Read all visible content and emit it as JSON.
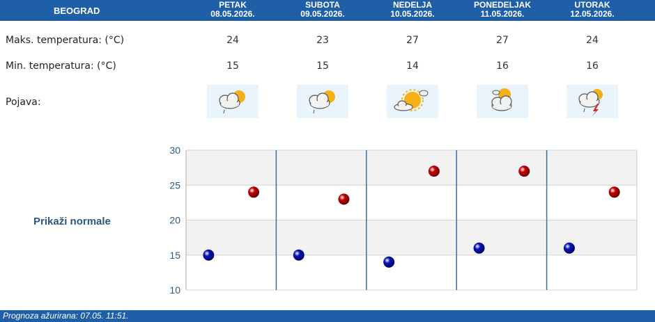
{
  "header": {
    "city": "BEOGRAD",
    "days": [
      {
        "name": "PETAK",
        "date": "08.05.2026."
      },
      {
        "name": "SUBOTA",
        "date": "09.05.2026."
      },
      {
        "name": "NEDELJA",
        "date": "10.05.2026."
      },
      {
        "name": "PONEDELJAK",
        "date": "11.05.2026."
      },
      {
        "name": "UTORAK",
        "date": "12.05.2026."
      }
    ]
  },
  "rows": {
    "max_label": "Maks. temperatura: (°C)",
    "min_label": "Min. temperatura: (°C)",
    "phenomena_label": "Pojava:"
  },
  "forecast": {
    "max": [
      "24",
      "23",
      "27",
      "27",
      "24"
    ],
    "min": [
      "15",
      "15",
      "14",
      "16",
      "16"
    ],
    "icons": [
      "partly-cloudy-rain-icon",
      "partly-cloudy-rain-icon",
      "sunny-cloud-icon",
      "partly-cloudy-icon",
      "cloudy-thunderstorm-icon"
    ]
  },
  "normals_link": "Prikaži normale",
  "chart_data": {
    "type": "scatter",
    "ylim": [
      10,
      30
    ],
    "yticks": [
      "30",
      "25",
      "20",
      "15",
      "10"
    ],
    "series": [
      {
        "values": [
          15,
          15,
          14,
          16,
          16
        ],
        "color": "#0a14b4"
      },
      {
        "values": [
          24,
          23,
          27,
          27,
          24
        ],
        "color": "#c40000"
      }
    ],
    "grid": true
  },
  "footer": {
    "updated": "Prognoza ažurirana:  07.05. 11:51."
  }
}
